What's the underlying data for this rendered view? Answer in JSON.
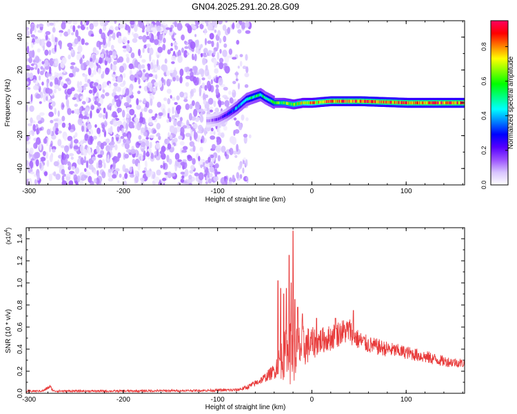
{
  "figure_title": "GN04.2025.291.20.28.G09",
  "chart_data": [
    {
      "type": "heatmap",
      "name": "spectrogram",
      "xlabel": "Height of straight line (km)",
      "ylabel": "Frequency (Hz)",
      "xlim": [
        -303,
        162
      ],
      "ylim": [
        -50,
        50
      ],
      "xticks": [
        -300,
        -200,
        -100,
        0,
        100
      ],
      "xtick_labels": [
        "-300",
        "-200",
        "-100",
        "0",
        "100"
      ],
      "yticks": [
        -40,
        -20,
        0,
        20,
        40
      ],
      "ytick_labels": [
        "-40",
        "-20",
        "0",
        "20",
        "40"
      ],
      "colorbar": {
        "label": "Normalized spectral amplitude",
        "range": [
          0,
          0.95
        ],
        "ticks": [
          0.0,
          0.2,
          0.4,
          0.6,
          0.8
        ],
        "tick_labels": [
          "0.0",
          "0.2",
          "0.4",
          "0.6",
          "0.8"
        ],
        "colors": [
          "#ffffff",
          "#d8c4ff",
          "#9a50ff",
          "#5500ff",
          "#0000ff",
          "#0080ff",
          "#00ffff",
          "#00ff80",
          "#00ff00",
          "#80ff00",
          "#ffff00",
          "#ff8000",
          "#ff0000",
          "#ff0060"
        ]
      },
      "noise_region": {
        "x_from": -303,
        "x_to": -65,
        "amplitude_range": [
          0.02,
          0.14
        ]
      },
      "signal_track": {
        "x": [
          -110,
          -100,
          -90,
          -80,
          -70,
          -60,
          -55,
          -50,
          -40,
          -30,
          -20,
          -10,
          0,
          20,
          50,
          100,
          162
        ],
        "freq_hz": [
          -11,
          -10,
          -7,
          -3,
          2,
          4,
          5,
          3,
          0,
          0,
          -1,
          0,
          0,
          1,
          1,
          0,
          0
        ],
        "amplitude": [
          0.12,
          0.2,
          0.3,
          0.45,
          0.5,
          0.55,
          0.55,
          0.5,
          0.6,
          0.65,
          0.7,
          0.75,
          0.82,
          0.9,
          0.92,
          0.9,
          0.92
        ]
      }
    },
    {
      "type": "line",
      "name": "snr",
      "xlabel": "Height of straight line (km)",
      "ylabel": "SNR (10 * v/v)",
      "y_multiplier": "(x10",
      "y_multiplier_exp": "4",
      "y_multiplier_close": ")",
      "xlim": [
        -303,
        162
      ],
      "ylim": [
        0,
        1.5
      ],
      "xticks": [
        -300,
        -200,
        -100,
        0,
        100
      ],
      "xtick_labels": [
        "-300",
        "-200",
        "-100",
        "0",
        "100"
      ],
      "yticks": [
        0.0,
        0.2,
        0.4,
        0.6,
        0.8,
        1.0,
        1.2,
        1.4
      ],
      "ytick_labels": [
        "0.0",
        "0.2",
        "0.4",
        "0.6",
        "0.8",
        "1.0",
        "1.2",
        "1.4"
      ],
      "color": "#e83a3a",
      "envelope": {
        "x": [
          -303,
          -285,
          -278,
          -274,
          -268,
          -200,
          -120,
          -80,
          -70,
          -60,
          -50,
          -40,
          -35,
          -30,
          -25,
          -20,
          -15,
          -10,
          0,
          10,
          20,
          30,
          40,
          45,
          50,
          60,
          80,
          100,
          120,
          140,
          162
        ],
        "mean": [
          0.018,
          0.022,
          0.06,
          0.022,
          0.02,
          0.02,
          0.025,
          0.03,
          0.05,
          0.09,
          0.14,
          0.2,
          0.28,
          0.33,
          0.36,
          0.38,
          0.4,
          0.42,
          0.45,
          0.48,
          0.5,
          0.55,
          0.57,
          0.52,
          0.48,
          0.44,
          0.4,
          0.37,
          0.33,
          0.29,
          0.27
        ],
        "spread": [
          0.01,
          0.01,
          0.02,
          0.01,
          0.01,
          0.01,
          0.01,
          0.015,
          0.02,
          0.03,
          0.04,
          0.07,
          0.14,
          0.22,
          0.28,
          0.3,
          0.25,
          0.2,
          0.15,
          0.12,
          0.12,
          0.12,
          0.12,
          0.1,
          0.09,
          0.08,
          0.07,
          0.06,
          0.06,
          0.05,
          0.04
        ]
      },
      "peaks": [
        {
          "x": -36,
          "y": 1.02
        },
        {
          "x": -33,
          "y": 0.95
        },
        {
          "x": -30,
          "y": 0.9
        },
        {
          "x": -27,
          "y": 0.95
        },
        {
          "x": -24,
          "y": 1.25
        },
        {
          "x": -22,
          "y": 1.0
        },
        {
          "x": -20,
          "y": 1.47
        },
        {
          "x": -18,
          "y": 0.85
        },
        {
          "x": -15,
          "y": 0.78
        },
        {
          "x": -10,
          "y": 0.72
        },
        {
          "x": 5,
          "y": 0.68
        },
        {
          "x": 25,
          "y": 0.68
        },
        {
          "x": 44,
          "y": 0.75
        }
      ]
    }
  ]
}
